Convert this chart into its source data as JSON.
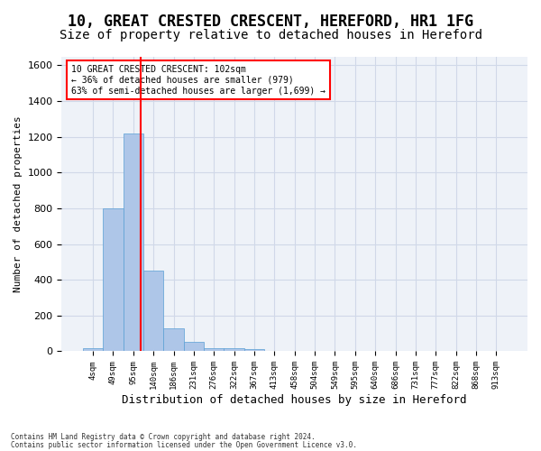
{
  "title_line1": "10, GREAT CRESTED CRESCENT, HEREFORD, HR1 1FG",
  "title_line2": "Size of property relative to detached houses in Hereford",
  "xlabel": "Distribution of detached houses by size in Hereford",
  "ylabel": "Number of detached properties",
  "footnote1": "Contains HM Land Registry data © Crown copyright and database right 2024.",
  "footnote2": "Contains public sector information licensed under the Open Government Licence v3.0.",
  "bin_labels": [
    "4sqm",
    "49sqm",
    "95sqm",
    "140sqm",
    "186sqm",
    "231sqm",
    "276sqm",
    "322sqm",
    "367sqm",
    "413sqm",
    "458sqm",
    "504sqm",
    "549sqm",
    "595sqm",
    "640sqm",
    "686sqm",
    "731sqm",
    "777sqm",
    "822sqm",
    "868sqm",
    "913sqm"
  ],
  "bar_values": [
    20,
    800,
    1220,
    450,
    130,
    55,
    20,
    15,
    10,
    0,
    0,
    0,
    0,
    0,
    0,
    0,
    0,
    0,
    0,
    0,
    0
  ],
  "bar_color": "#aec6e8",
  "bar_edge_color": "#5a9fd4",
  "annotation_text": "10 GREAT CRESTED CRESCENT: 102sqm\n← 36% of detached houses are smaller (979)\n63% of semi-detached houses are larger (1,699) →",
  "annotation_box_color": "white",
  "annotation_box_edge_color": "red",
  "ylim": [
    0,
    1650
  ],
  "yticks": [
    0,
    200,
    400,
    600,
    800,
    1000,
    1200,
    1400,
    1600
  ],
  "vline_color": "red",
  "vline_x": 2.35,
  "grid_color": "#d0d8e8",
  "background_color": "#eef2f8",
  "title_fontsize": 12,
  "subtitle_fontsize": 10,
  "font_family": "DejaVu Sans Mono"
}
